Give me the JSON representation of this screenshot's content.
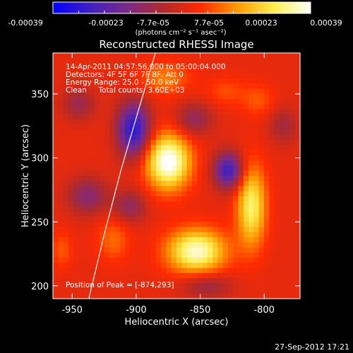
{
  "colorbar": {
    "tick_labels": [
      "-0.00039",
      "-0.00023",
      "-7.7e-05",
      "7.7e-05",
      "0.00023",
      "0.00039"
    ],
    "unit_label": "(photons cm⁻² s⁻¹ asec⁻²)",
    "range": [
      -0.00039,
      0.00039
    ],
    "colors": [
      "#0000ff",
      "#4020c0",
      "#7a2a8a",
      "#b02a2a",
      "#ff2a00",
      "#ff9a00",
      "#ffee50",
      "#ffffff"
    ]
  },
  "chart_data": {
    "type": "heatmap",
    "title": "Reconstructed RHESSI Image",
    "xlabel": "Heliocentric X (arcsec)",
    "ylabel": "Heliocentric Y (arcsec)",
    "xlim": [
      -965,
      -772
    ],
    "ylim": [
      190,
      382
    ],
    "x_ticks": [
      -950,
      -900,
      -850,
      -800
    ],
    "y_ticks": [
      200,
      250,
      300,
      350
    ],
    "annotations": [
      "14-Apr-2011 04:57:56.000 to 05:00:04.000",
      "Detectors: 4F 5F 6F 7F 8F, Att 0",
      "Energy Range: 25.0 - 50.0 keV",
      "Clean     Total counts: 3.60E+03"
    ],
    "peak_label": "Position of Peak = [-874,293]",
    "peak": {
      "x": -874,
      "y": 293
    },
    "sources": [
      {
        "x": -875,
        "y": 297,
        "value": 0.00039,
        "sx": 12,
        "sy": 15
      },
      {
        "x": -853,
        "y": 227,
        "value": 0.00034,
        "sx": 16,
        "sy": 12
      },
      {
        "x": -810,
        "y": 262,
        "value": 0.00028,
        "sx": 8,
        "sy": 22
      },
      {
        "x": -878,
        "y": 362,
        "value": 0.00012,
        "sx": 14,
        "sy": 9
      },
      {
        "x": -918,
        "y": 236,
        "value": 0.0001,
        "sx": 9,
        "sy": 12
      },
      {
        "x": -805,
        "y": 345,
        "value": 8e-05,
        "sx": 9,
        "sy": 9
      },
      {
        "x": -958,
        "y": 228,
        "value": 8e-05,
        "sx": 6,
        "sy": 10
      },
      {
        "x": -830,
        "y": 352,
        "value": 7e-05,
        "sx": 10,
        "sy": 8
      },
      {
        "x": -902,
        "y": 322,
        "value": -0.00034,
        "sx": 9,
        "sy": 15
      },
      {
        "x": -828,
        "y": 290,
        "value": -0.0003,
        "sx": 8,
        "sy": 10
      },
      {
        "x": -938,
        "y": 270,
        "value": -0.00016,
        "sx": 11,
        "sy": 10
      },
      {
        "x": -905,
        "y": 262,
        "value": -0.00014,
        "sx": 9,
        "sy": 9
      },
      {
        "x": -855,
        "y": 330,
        "value": -0.00014,
        "sx": 10,
        "sy": 9
      },
      {
        "x": -845,
        "y": 200,
        "value": -0.00012,
        "sx": 14,
        "sy": 7
      },
      {
        "x": -945,
        "y": 342,
        "value": -0.00012,
        "sx": 9,
        "sy": 9
      },
      {
        "x": -785,
        "y": 325,
        "value": -0.0001,
        "sx": 8,
        "sy": 10
      }
    ],
    "limb_curve": [
      [
        -937,
        190
      ],
      [
        -925,
        240
      ],
      [
        -912,
        290
      ],
      [
        -898,
        338
      ],
      [
        -885,
        382
      ]
    ]
  },
  "footer": {
    "timestamp": "27-Sep-2012 17:21"
  }
}
